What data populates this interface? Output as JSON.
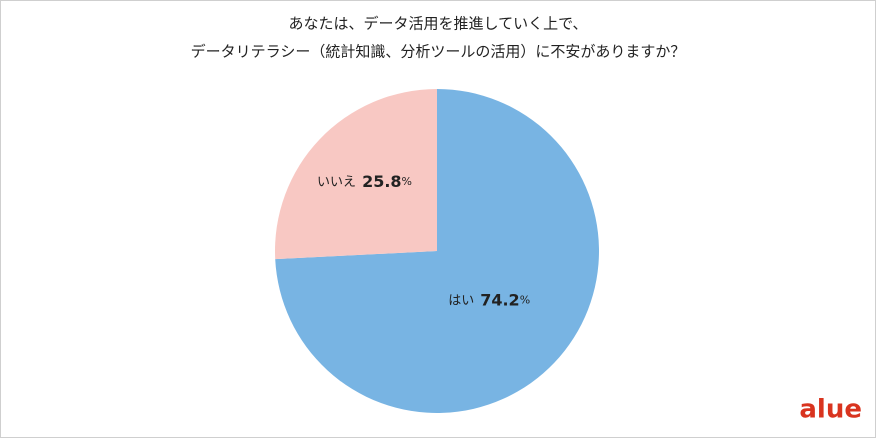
{
  "chart_data": {
    "type": "pie",
    "title": [
      "あなたは、データ活用を推進していく上で、",
      "データリテラシー（統計知識、分析ツールの活用）に不安がありますか？"
    ],
    "categories": [
      "はい",
      "いいえ"
    ],
    "values": [
      74.2,
      25.8
    ],
    "value_labels": [
      "74.2%",
      "25.8%"
    ],
    "colors": [
      "#78b4e3",
      "#f8c8c3"
    ],
    "logo": "alue"
  }
}
